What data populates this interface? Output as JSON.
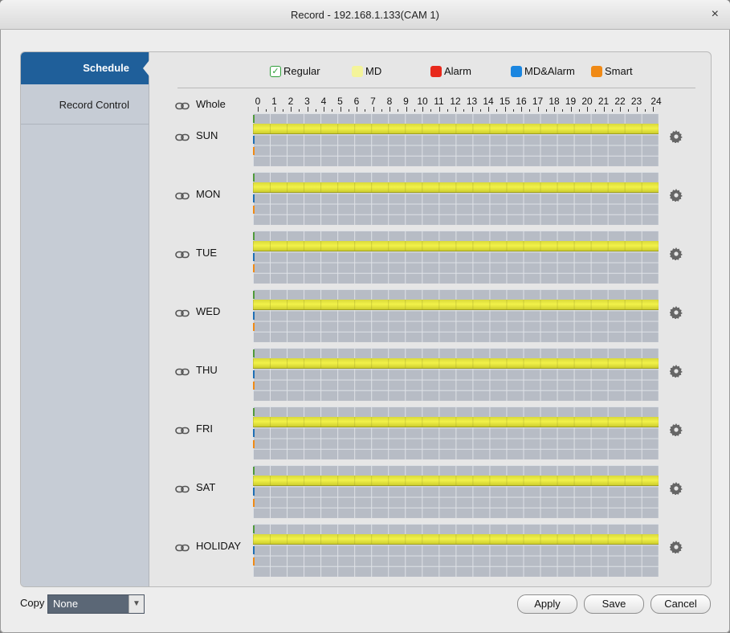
{
  "window": {
    "title": "Record - 192.168.1.133(CAM 1)",
    "close": "×"
  },
  "sidebar": {
    "items": [
      {
        "label": "Schedule",
        "active": true
      },
      {
        "label": "Record Control",
        "active": false
      }
    ]
  },
  "legend": {
    "items": [
      {
        "label": "Regular",
        "color": "#2f9f3a",
        "checked": true
      },
      {
        "label": "MD",
        "color": "#f4f49a"
      },
      {
        "label": "Alarm",
        "color": "#e8291c"
      },
      {
        "label": "MD&Alarm",
        "color": "#1b86e0"
      },
      {
        "label": "Smart",
        "color": "#f08a16"
      }
    ]
  },
  "schedule": {
    "whole_label": "Whole",
    "hours": [
      "0",
      "1",
      "2",
      "3",
      "4",
      "5",
      "6",
      "7",
      "8",
      "9",
      "10",
      "11",
      "12",
      "13",
      "14",
      "15",
      "16",
      "17",
      "18",
      "19",
      "20",
      "21",
      "22",
      "23",
      "24"
    ],
    "days": [
      {
        "label": "SUN",
        "regular_range": [
          "00:00",
          "24:00"
        ]
      },
      {
        "label": "MON",
        "regular_range": [
          "00:00",
          "24:00"
        ]
      },
      {
        "label": "TUE",
        "regular_range": [
          "00:00",
          "24:00"
        ]
      },
      {
        "label": "WED",
        "regular_range": [
          "00:00",
          "24:00"
        ]
      },
      {
        "label": "THU",
        "regular_range": [
          "00:00",
          "24:00"
        ]
      },
      {
        "label": "FRI",
        "regular_range": [
          "00:00",
          "24:00"
        ]
      },
      {
        "label": "SAT",
        "regular_range": [
          "00:00",
          "24:00"
        ]
      },
      {
        "label": "HOLIDAY",
        "regular_range": [
          "00:00",
          "24:00"
        ]
      }
    ],
    "lane_colors": [
      "#4f9a3a",
      "#c81e1e",
      "#1f6fb5",
      "#f08a16"
    ],
    "regular_color": "#e8e83c"
  },
  "footer": {
    "copy_label": "Copy",
    "copy_value": "None",
    "apply_label": "Apply",
    "save_label": "Save",
    "cancel_label": "Cancel"
  }
}
